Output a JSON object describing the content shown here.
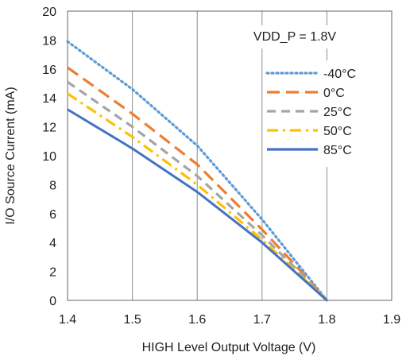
{
  "chart_data": {
    "type": "line",
    "xlabel": "HIGH Level Output Voltage (V)",
    "ylabel": "I/O Source Current (mA)",
    "xlim": [
      1.4,
      1.9
    ],
    "ylim": [
      0,
      20
    ],
    "xticks": [
      "1.4",
      "1.5",
      "1.6",
      "1.7",
      "1.8",
      "1.9"
    ],
    "yticks": [
      "0",
      "2",
      "4",
      "6",
      "8",
      "10",
      "12",
      "14",
      "16",
      "18",
      "20"
    ],
    "grid": "vertical",
    "annotation": "VDD_P = 1.8V",
    "legend_position": "top-right",
    "series": [
      {
        "name": "-40°C",
        "color": "#5b9bd5",
        "style": "dotted",
        "points": [
          [
            1.4,
            17.9
          ],
          [
            1.5,
            14.6
          ],
          [
            1.6,
            10.7
          ],
          [
            1.7,
            5.6
          ],
          [
            1.75,
            2.8
          ],
          [
            1.8,
            0
          ]
        ]
      },
      {
        "name": "0°C",
        "color": "#ed7d31",
        "style": "long-dash",
        "points": [
          [
            1.4,
            16.1
          ],
          [
            1.5,
            12.9
          ],
          [
            1.6,
            9.4
          ],
          [
            1.7,
            4.9
          ],
          [
            1.75,
            2.5
          ],
          [
            1.8,
            0
          ]
        ]
      },
      {
        "name": "25°C",
        "color": "#a5a5a5",
        "style": "dash",
        "points": [
          [
            1.4,
            15.1
          ],
          [
            1.5,
            12.0
          ],
          [
            1.6,
            8.6
          ],
          [
            1.7,
            4.5
          ],
          [
            1.75,
            2.3
          ],
          [
            1.8,
            0
          ]
        ]
      },
      {
        "name": "50°C",
        "color": "#ffc000",
        "style": "dash-dot",
        "points": [
          [
            1.4,
            14.3
          ],
          [
            1.5,
            11.3
          ],
          [
            1.6,
            8.0
          ],
          [
            1.7,
            4.2
          ],
          [
            1.75,
            2.1
          ],
          [
            1.8,
            0
          ]
        ]
      },
      {
        "name": "85°C",
        "color": "#4472c4",
        "style": "solid",
        "points": [
          [
            1.4,
            13.2
          ],
          [
            1.5,
            10.5
          ],
          [
            1.6,
            7.5
          ],
          [
            1.7,
            4.0
          ],
          [
            1.75,
            2.0
          ],
          [
            1.8,
            0
          ]
        ]
      }
    ]
  }
}
